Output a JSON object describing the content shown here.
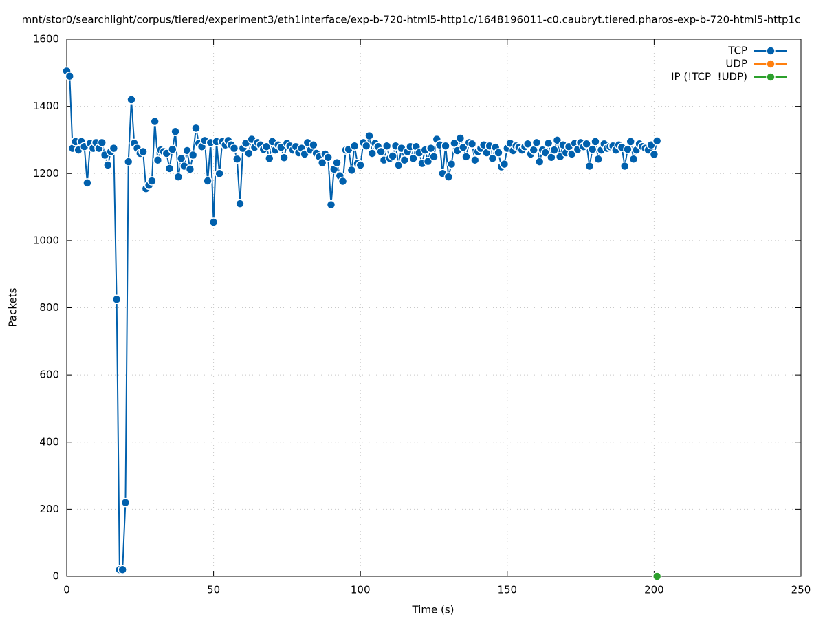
{
  "chart_data": {
    "type": "line",
    "title": "mnt/stor0/searchlight/corpus/tiered/experiment3/eth1interface/exp-b-720-html5-http1c/1648196011-c0.caubryt.tiered.pharos-exp-b-720-html5-http1c",
    "xlabel": "Time (s)",
    "ylabel": "Packets",
    "xlim": [
      0,
      250
    ],
    "xticks": [
      0,
      50,
      100,
      150,
      200,
      250
    ],
    "ylim": [
      0,
      1600
    ],
    "yticks": [
      0,
      200,
      400,
      600,
      800,
      1000,
      1200,
      1400,
      1600
    ],
    "grid": true,
    "legend": "top-right",
    "series": [
      {
        "name": "TCP",
        "color": "#0060ad",
        "x": [
          0,
          1,
          2,
          3,
          4,
          5,
          6,
          7,
          8,
          9,
          10,
          11,
          12,
          13,
          14,
          15,
          16,
          17,
          18,
          19,
          20,
          21,
          22,
          23,
          24,
          25,
          26,
          27,
          28,
          29,
          30,
          31,
          32,
          33,
          34,
          35,
          36,
          37,
          38,
          39,
          40,
          41,
          42,
          43,
          44,
          45,
          46,
          47,
          48,
          49,
          50,
          51,
          52,
          53,
          54,
          55,
          56,
          57,
          58,
          59,
          60,
          61,
          62,
          63,
          64,
          65,
          66,
          67,
          68,
          69,
          70,
          71,
          72,
          73,
          74,
          75,
          76,
          77,
          78,
          79,
          80,
          81,
          82,
          83,
          84,
          85,
          86,
          87,
          88,
          89,
          90,
          91,
          92,
          93,
          94,
          95,
          96,
          97,
          98,
          99,
          100,
          101,
          102,
          103,
          104,
          105,
          106,
          107,
          108,
          109,
          110,
          111,
          112,
          113,
          114,
          115,
          116,
          117,
          118,
          119,
          120,
          121,
          122,
          123,
          124,
          125,
          126,
          127,
          128,
          129,
          130,
          131,
          132,
          133,
          134,
          135,
          136,
          137,
          138,
          139,
          140,
          141,
          142,
          143,
          144,
          145,
          146,
          147,
          148,
          149,
          150,
          151,
          152,
          153,
          154,
          155,
          156,
          157,
          158,
          159,
          160,
          161,
          162,
          163,
          164,
          165,
          166,
          167,
          168,
          169,
          170,
          171,
          172,
          173,
          174,
          175,
          176,
          177,
          178,
          179,
          180,
          181,
          182,
          183,
          184,
          185,
          186,
          187,
          188,
          189,
          190,
          191,
          192,
          193,
          194,
          195,
          196,
          197,
          198,
          199,
          200,
          201
        ],
        "values": [
          1505,
          1490,
          1275,
          1295,
          1270,
          1295,
          1280,
          1172,
          1290,
          1275,
          1292,
          1275,
          1292,
          1255,
          1225,
          1265,
          1275,
          825,
          20,
          20,
          220,
          1235,
          1420,
          1290,
          1275,
          1260,
          1265,
          1155,
          1165,
          1178,
          1355,
          1240,
          1270,
          1265,
          1260,
          1215,
          1272,
          1325,
          1190,
          1245,
          1222,
          1268,
          1213,
          1255,
          1335,
          1290,
          1280,
          1298,
          1178,
          1292,
          1055,
          1295,
          1200,
          1295,
          1285,
          1298,
          1285,
          1275,
          1243,
          1110,
          1275,
          1290,
          1260,
          1302,
          1278,
          1292,
          1285,
          1272,
          1280,
          1245,
          1295,
          1270,
          1285,
          1278,
          1247,
          1290,
          1282,
          1270,
          1280,
          1262,
          1275,
          1258,
          1292,
          1270,
          1285,
          1260,
          1250,
          1232,
          1258,
          1248,
          1107,
          1213,
          1232,
          1193,
          1177,
          1270,
          1272,
          1210,
          1282,
          1230,
          1225,
          1292,
          1282,
          1312,
          1260,
          1290,
          1280,
          1265,
          1240,
          1282,
          1245,
          1252,
          1282,
          1225,
          1275,
          1240,
          1265,
          1280,
          1245,
          1280,
          1262,
          1230,
          1270,
          1236,
          1275,
          1250,
          1302,
          1285,
          1200,
          1282,
          1190,
          1228,
          1290,
          1268,
          1305,
          1278,
          1250,
          1292,
          1288,
          1240,
          1265,
          1275,
          1285,
          1262,
          1282,
          1245,
          1278,
          1262,
          1220,
          1228,
          1275,
          1290,
          1268,
          1282,
          1278,
          1270,
          1280,
          1288,
          1258,
          1270,
          1292,
          1235,
          1270,
          1262,
          1290,
          1248,
          1270,
          1299,
          1250,
          1285,
          1262,
          1280,
          1258,
          1290,
          1272,
          1292,
          1280,
          1288,
          1222,
          1272,
          1295,
          1243,
          1270,
          1288,
          1275,
          1280,
          1282,
          1270,
          1285,
          1278,
          1222,
          1272,
          1295,
          1243,
          1270,
          1288,
          1280,
          1275,
          1270,
          1285,
          1257,
          1297
        ]
      },
      {
        "name": "UDP",
        "color": "#ff7f0e",
        "x": [],
        "values": []
      },
      {
        "name": "IP (!TCP  !UDP)",
        "color": "#2ca02c",
        "x": [
          201
        ],
        "values": [
          0
        ]
      }
    ]
  }
}
